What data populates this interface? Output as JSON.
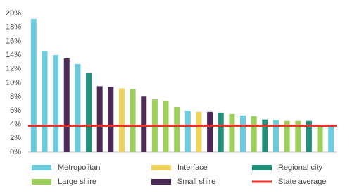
{
  "chart_data": {
    "type": "bar",
    "categories": [
      null,
      null,
      null,
      null,
      null,
      null,
      null,
      null,
      null,
      null,
      null,
      null,
      null,
      null,
      null,
      null,
      null,
      null,
      null,
      null,
      null,
      null,
      null,
      null,
      null,
      null,
      null,
      null
    ],
    "series": [
      {
        "name": "Metropolitan",
        "color": "#6ccbdc",
        "values": [
          19.2,
          14.6,
          14.0,
          null,
          12.7,
          null,
          null,
          null,
          null,
          null,
          null,
          null,
          null,
          null,
          6.0,
          null,
          null,
          null,
          null,
          5.3,
          null,
          null,
          4.6,
          null,
          null,
          null,
          null,
          3.9
        ]
      },
      {
        "name": "Interface",
        "color": "#f0d35c",
        "values": [
          null,
          null,
          null,
          null,
          null,
          null,
          null,
          null,
          9.2,
          null,
          null,
          null,
          null,
          null,
          null,
          5.8,
          null,
          null,
          null,
          null,
          null,
          null,
          null,
          null,
          null,
          null,
          null,
          null
        ]
      },
      {
        "name": "Regional city",
        "color": "#21907a",
        "values": [
          null,
          null,
          null,
          null,
          null,
          11.4,
          null,
          null,
          null,
          null,
          null,
          null,
          null,
          null,
          null,
          null,
          null,
          5.7,
          null,
          null,
          null,
          4.7,
          null,
          null,
          null,
          4.5,
          null,
          null
        ]
      },
      {
        "name": "Large shire",
        "color": "#9dcf5c",
        "values": [
          null,
          null,
          null,
          null,
          null,
          null,
          null,
          null,
          null,
          9.1,
          null,
          7.6,
          7.4,
          6.5,
          null,
          null,
          null,
          null,
          5.5,
          null,
          5.2,
          null,
          null,
          4.5,
          4.5,
          null,
          3.9,
          null
        ]
      },
      {
        "name": "Small shire",
        "color": "#4b2a58",
        "values": [
          null,
          null,
          null,
          13.5,
          null,
          null,
          9.5,
          9.4,
          null,
          null,
          8.1,
          null,
          null,
          null,
          null,
          null,
          5.8,
          null,
          null,
          null,
          null,
          null,
          null,
          null,
          null,
          null,
          null,
          null
        ]
      }
    ],
    "reference_line": {
      "name": "State average",
      "value": 3.8,
      "color": "#e8302a"
    },
    "ylim": [
      0,
      20
    ],
    "yticks": [
      {
        "value": 0,
        "label": "0%"
      },
      {
        "value": 2,
        "label": "2%"
      },
      {
        "value": 4,
        "label": "4%"
      },
      {
        "value": 6,
        "label": "6%"
      },
      {
        "value": 8,
        "label": "8%"
      },
      {
        "value": 10,
        "label": "10%"
      },
      {
        "value": 12,
        "label": "12%"
      },
      {
        "value": 14,
        "label": "14%"
      },
      {
        "value": 16,
        "label": "16%"
      },
      {
        "value": 18,
        "label": "18%"
      },
      {
        "value": 20,
        "label": "20%"
      }
    ]
  }
}
